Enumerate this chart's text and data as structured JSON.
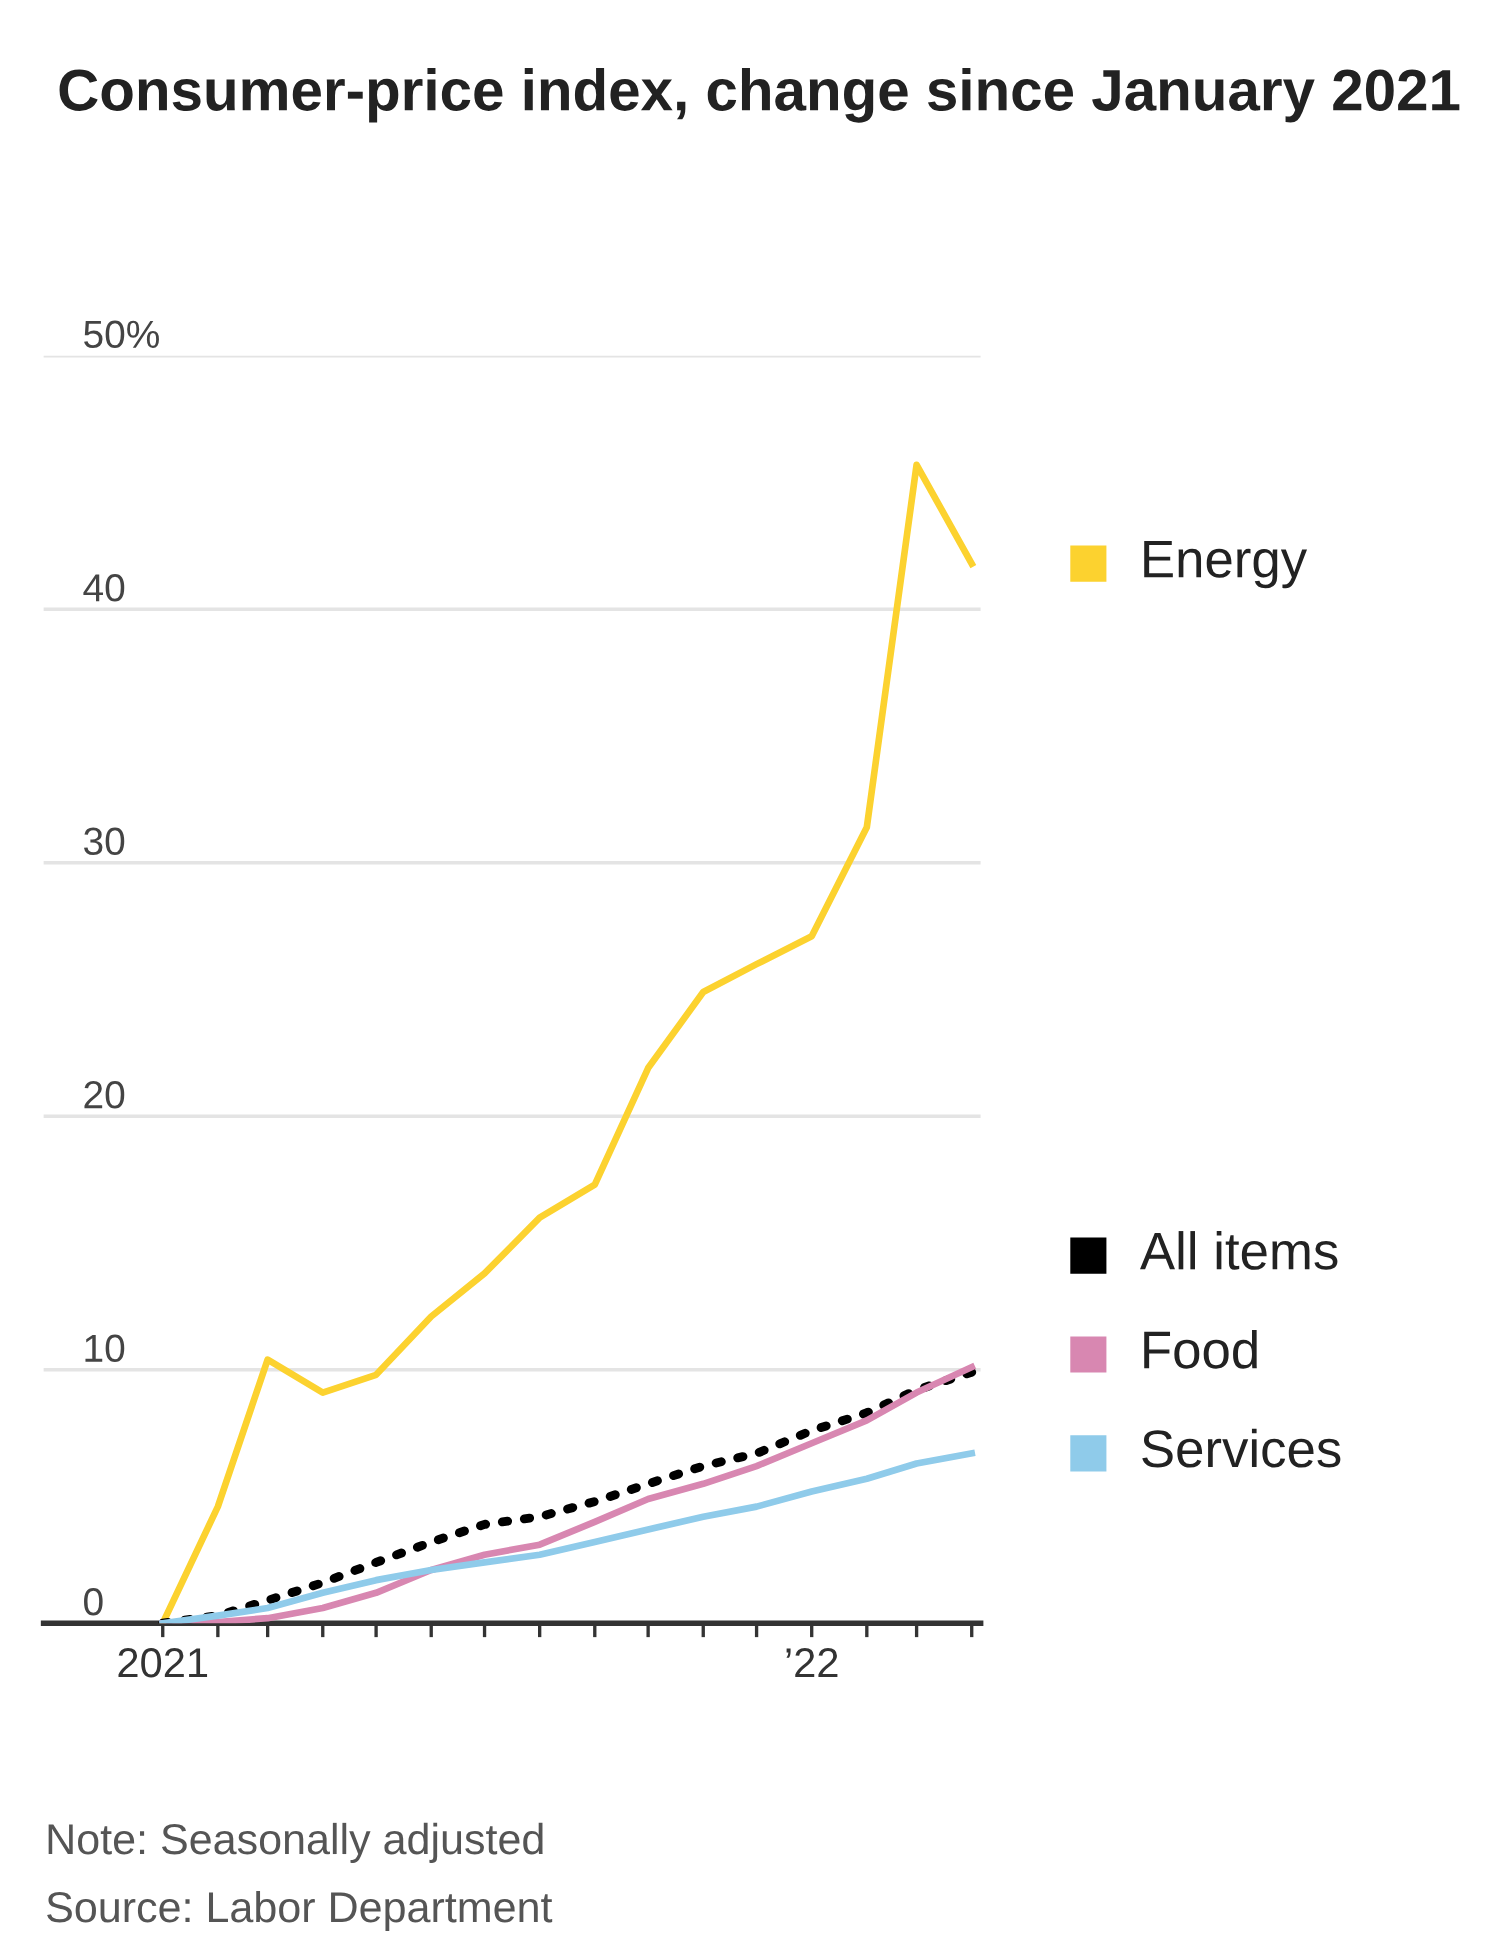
{
  "chart_data": {
    "type": "line",
    "title": "Consumer-price index, change since January 2021",
    "x": [
      "2021-01",
      "2021-02",
      "2021-03",
      "2021-04",
      "2021-05",
      "2021-06",
      "2021-07",
      "2021-08",
      "2021-09",
      "2021-10",
      "2021-11",
      "2021-12",
      "2022-01",
      "2022-02",
      "2022-03",
      "2022-04"
    ],
    "series": [
      {
        "name": "Energy",
        "color": "#fcd22f",
        "values": [
          0,
          4.6,
          10.4,
          9.1,
          9.8,
          12.1,
          13.8,
          16.0,
          17.3,
          21.9,
          24.9,
          26.0,
          27.1,
          31.4,
          45.7,
          41.8
        ]
      },
      {
        "name": "All items",
        "color": "#000000",
        "line_style": "dotted",
        "values": [
          0,
          0.3,
          0.9,
          1.6,
          2.4,
          3.2,
          3.9,
          4.2,
          4.8,
          5.5,
          6.2,
          6.7,
          7.6,
          8.3,
          9.2,
          9.9
        ]
      },
      {
        "name": "Food",
        "color": "#d887b1",
        "values": [
          0,
          0.05,
          0.2,
          0.6,
          1.2,
          2.1,
          2.7,
          3.1,
          4.0,
          4.9,
          5.5,
          6.2,
          7.1,
          8.0,
          9.1,
          10.1
        ]
      },
      {
        "name": "Services",
        "color": "#8fcbea",
        "values": [
          0,
          0.3,
          0.6,
          1.2,
          1.7,
          2.1,
          2.4,
          2.7,
          3.2,
          3.7,
          4.2,
          4.6,
          5.2,
          5.7,
          6.3,
          6.7
        ]
      }
    ],
    "xlim": [
      "2020-10-26",
      "2022-04-06"
    ],
    "xticks": [
      {
        "value": "2021-01",
        "label": "2021"
      },
      {
        "value": "2021-02",
        "label": null
      },
      {
        "value": "2021-03",
        "label": null
      },
      {
        "value": "2021-04",
        "label": null
      },
      {
        "value": "2021-05",
        "label": null
      },
      {
        "value": "2021-06",
        "label": null
      },
      {
        "value": "2021-07",
        "label": null
      },
      {
        "value": "2021-08",
        "label": null
      },
      {
        "value": "2021-09",
        "label": null
      },
      {
        "value": "2021-10",
        "label": null
      },
      {
        "value": "2021-11",
        "label": null
      },
      {
        "value": "2021-12",
        "label": null
      },
      {
        "value": "2022-01",
        "label": "’22"
      },
      {
        "value": "2022-02",
        "label": null
      },
      {
        "value": "2022-03",
        "label": null
      },
      {
        "value": "2022-04",
        "label": null
      }
    ],
    "ylim": [
      0,
      50
    ],
    "yticks": [
      0,
      10,
      20,
      30,
      40,
      {
        "value": 50,
        "label": "50%"
      }
    ],
    "grid": "y",
    "legend": "right",
    "annotations": [
      "Note: Seasonally adjusted",
      "Source: Labor Department"
    ]
  }
}
